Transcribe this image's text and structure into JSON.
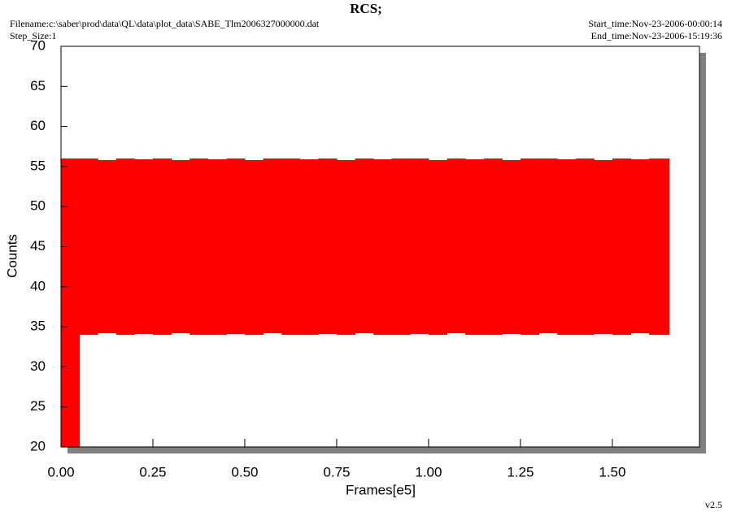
{
  "chart_data": {
    "type": "area",
    "title": "RCS;",
    "filename": "Filename:c:\\saber\\prod\\data\\QL\\data\\plot_data\\SABE_Tlm2006327000000.dat",
    "step_size": "Step_Size:1",
    "start_time": "Start_time:Nov-23-2006-00:00:14",
    "end_time": "End_time:Nov-23-2006-15:19:36",
    "version": "v2.5",
    "xlabel": "Frames[e5]",
    "ylabel": "Counts",
    "color": "#ff0000",
    "xlim": [
      0,
      1.737
    ],
    "ylim": [
      20,
      70
    ],
    "xticks": [
      {
        "value": 0,
        "label": "0.00"
      },
      0.25,
      {
        "value": 0.5,
        "label": "0.50"
      },
      0.75,
      {
        "value": 1,
        "label": "1.00"
      },
      1.25,
      {
        "value": 1.5,
        "label": "1.50"
      }
    ],
    "yticks": [
      20,
      25,
      30,
      35,
      40,
      45,
      50,
      55,
      60,
      65,
      70
    ],
    "x": [
      0,
      0.05,
      0.1,
      0.15,
      0.2,
      0.25,
      0.3,
      0.35,
      0.4,
      0.45,
      0.5,
      0.55,
      0.6,
      0.65,
      0.7,
      0.75,
      0.8,
      0.85,
      0.9,
      0.95,
      1.0,
      1.05,
      1.1,
      1.15,
      1.2,
      1.25,
      1.3,
      1.35,
      1.4,
      1.45,
      1.5,
      1.55,
      1.6,
      1.65
    ],
    "max": [
      56,
      56,
      55.8,
      56,
      55.9,
      56,
      55.8,
      56,
      55.9,
      56,
      55.8,
      56,
      56,
      55.9,
      56,
      55.8,
      56,
      55.9,
      56,
      56,
      55.8,
      56,
      55.9,
      56,
      55.8,
      56,
      56,
      55.9,
      56,
      55.8,
      56,
      55.9,
      56,
      56
    ],
    "min": [
      20,
      34,
      34.2,
      34,
      34.1,
      34,
      34.2,
      34,
      34,
      34.1,
      34,
      34.2,
      34,
      34,
      34.1,
      34,
      34.2,
      34,
      34,
      34.1,
      34,
      34.2,
      34,
      34,
      34.1,
      34,
      34.2,
      34,
      34,
      34.1,
      34,
      34.2,
      34,
      34
    ]
  }
}
